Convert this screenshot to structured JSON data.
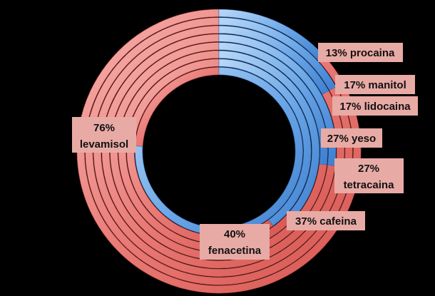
{
  "chart_data": {
    "type": "donut",
    "title": "",
    "rings_outer_to_inner": [
      {
        "label": "13% procaina",
        "percent": 13
      },
      {
        "label": "17% manitol",
        "percent": 17
      },
      {
        "label": "17% lidocaina",
        "percent": 17
      },
      {
        "label": "27%  yeso",
        "percent": 27
      },
      {
        "label": "27% tetracaina",
        "percent": 27
      },
      {
        "label": "37% cafeina",
        "percent": 37
      },
      {
        "label": "40% fenacetina",
        "percent": 40
      },
      {
        "label": "76% levamisol",
        "percent": 76
      }
    ],
    "label_lines": {
      "procaina": [
        "13% procaina"
      ],
      "manitol": [
        "17% manitol"
      ],
      "lidocaina": [
        "17% lidocaina"
      ],
      "yeso": [
        "27%  yeso"
      ],
      "tetracaina": [
        "27%",
        "tetracaina"
      ],
      "cafeina": [
        "37% cafeina"
      ],
      "fenacetina": [
        "40%",
        "fenacetina"
      ],
      "levamisol": [
        "76%",
        "levamisol"
      ]
    },
    "colors": {
      "highlight": "#5b9ae0",
      "remainder": "#e46460",
      "label_box": "#e8aaa5",
      "background": "#000000"
    }
  }
}
